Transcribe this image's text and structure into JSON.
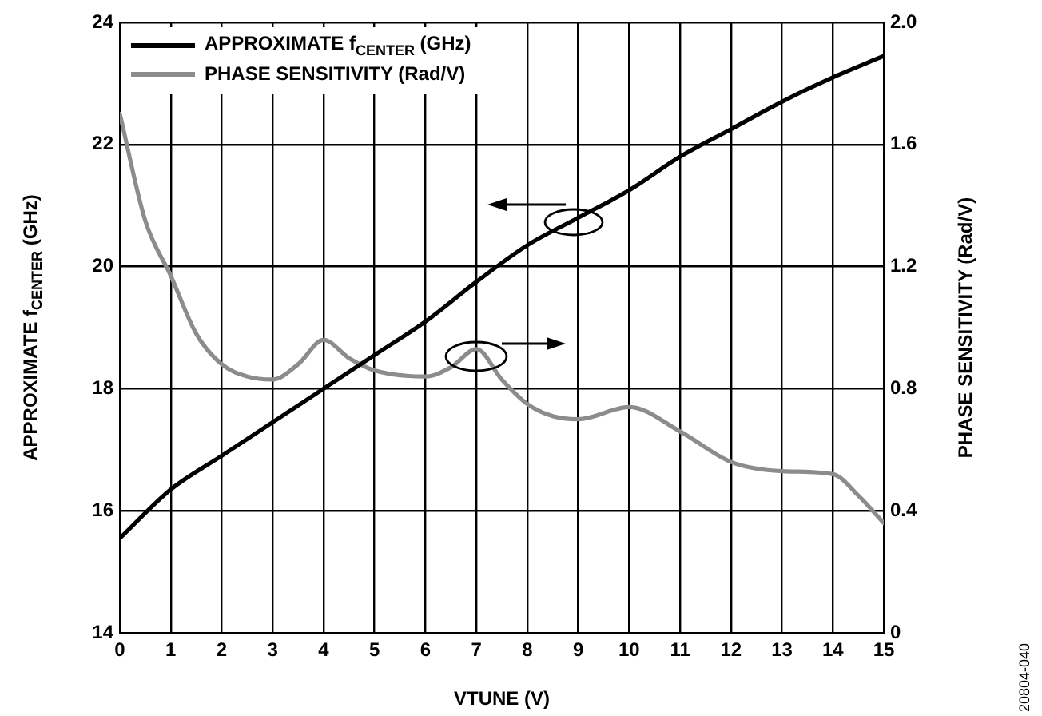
{
  "chart_data": {
    "type": "line",
    "xlabel": "VTUNE (V)",
    "ylabel": "APPROXIMATE f$_{CENTER}$ (GHz)",
    "y2label": "PHASE SENSITIVITY (Rad/V)",
    "xlim": [
      0,
      15
    ],
    "xticks": [
      0,
      1,
      2,
      3,
      4,
      5,
      6,
      7,
      8,
      9,
      10,
      11,
      12,
      13,
      14,
      15
    ],
    "ylim": [
      14,
      24
    ],
    "yticks": [
      14,
      16,
      18,
      20,
      22,
      24
    ],
    "y2lim": [
      0,
      2
    ],
    "y2ticks": [
      0,
      0.4,
      0.8,
      1.2,
      1.6,
      {
        "value": 2,
        "label": "2.0"
      }
    ],
    "grid": true,
    "legend": "top left",
    "marker": "none",
    "line_style": "solid",
    "annotations": [
      "20804-040"
    ],
    "series": [
      {
        "name": "APPROXIMATE f$_{CENTER}$ (GHz)",
        "color": "#000000",
        "axis": "y",
        "x": [
          0,
          1,
          2,
          3,
          4,
          5,
          6,
          7,
          8,
          9,
          10,
          11,
          12,
          13,
          14,
          15
        ],
        "values": [
          15.55,
          16.35,
          16.9,
          17.45,
          18.0,
          18.55,
          19.1,
          19.75,
          20.35,
          20.8,
          21.25,
          21.8,
          22.25,
          22.7,
          23.1,
          23.45
        ]
      },
      {
        "name": "PHASE SENSITIVITY (Rad/V)",
        "color": "#8c8c8c",
        "axis": "y2",
        "x": [
          0,
          0.5,
          1,
          1.5,
          2,
          2.5,
          3,
          3.5,
          4,
          4.5,
          5,
          6,
          6.5,
          7,
          7.5,
          8,
          8.5,
          9,
          10,
          11,
          12,
          13,
          14,
          14.5,
          15
        ],
        "values": [
          1.7,
          1.35,
          1.17,
          0.98,
          0.88,
          0.84,
          0.83,
          0.88,
          0.96,
          0.9,
          0.86,
          0.84,
          0.87,
          0.93,
          0.83,
          0.75,
          0.71,
          0.7,
          0.74,
          0.66,
          0.56,
          0.53,
          0.52,
          0.45,
          0.36
        ]
      }
    ]
  }
}
